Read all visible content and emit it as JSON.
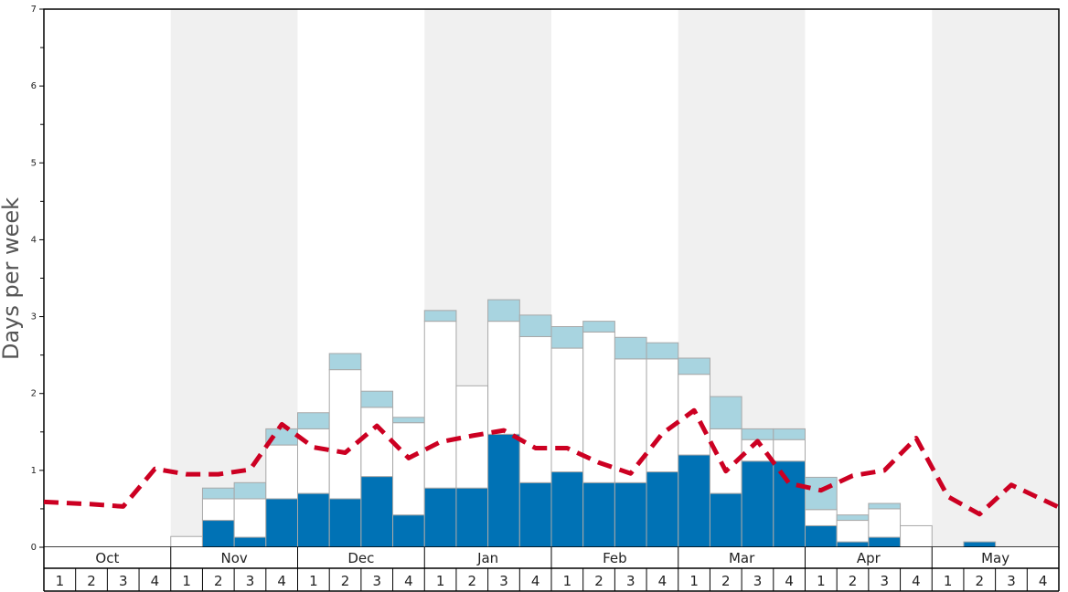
{
  "chart_data": {
    "type": "bar",
    "title": "",
    "xlabel": "",
    "ylabel": "Days per week",
    "ylim": [
      0,
      7
    ],
    "yticks": [
      "0",
      "1",
      "2",
      "3",
      "4",
      "5",
      "6",
      "7"
    ],
    "months": [
      "Oct",
      "Nov",
      "Dec",
      "Jan",
      "Feb",
      "Mar",
      "Apr",
      "May"
    ],
    "week_labels": [
      "1",
      "2",
      "3",
      "4"
    ],
    "grid": false,
    "colors": {
      "dark": "#0072b5",
      "white": "#ffffff",
      "light": "#a8d4e0",
      "line": "#cc0022",
      "band": "#f0f0f0",
      "bar_edge": "#a8a8a8"
    },
    "series": [
      {
        "values": [
          0,
          0,
          0,
          0,
          0,
          0.35,
          0.13,
          0.63,
          0.7,
          0.63,
          0.92,
          0.42,
          0.77,
          0.77,
          1.47,
          0.84,
          0.98,
          0.84,
          0.84,
          0.98,
          1.2,
          0.7,
          1.12,
          1.12,
          0.28,
          0.07,
          0.13,
          0,
          0,
          0.07,
          0,
          0
        ]
      },
      {
        "values": [
          0,
          0,
          0,
          0,
          0.14,
          0.28,
          0.5,
          0.7,
          0.84,
          1.68,
          0.9,
          1.2,
          2.17,
          1.33,
          1.47,
          1.9,
          1.61,
          1.96,
          1.61,
          1.47,
          1.05,
          0.84,
          0.28,
          0.28,
          0.21,
          0.28,
          0.37,
          0.28,
          0,
          0,
          0,
          0
        ]
      },
      {
        "values": [
          0,
          0,
          0,
          0,
          0,
          0.14,
          0.21,
          0.21,
          0.21,
          0.21,
          0.21,
          0.07,
          0.14,
          0,
          0.28,
          0.28,
          0.28,
          0.14,
          0.28,
          0.21,
          0.21,
          0.42,
          0.14,
          0.14,
          0.42,
          0.07,
          0.07,
          0,
          0,
          0,
          0,
          0
        ]
      },
      {
        "values": [
          0.59,
          0.56,
          0.53,
          1.02,
          0.95,
          0.95,
          1.01,
          1.6,
          1.3,
          1.23,
          1.58,
          1.16,
          1.37,
          1.45,
          1.52,
          1.29,
          1.29,
          1.1,
          0.96,
          1.48,
          1.78,
          0.99,
          1.38,
          0.83,
          0.74,
          0.93,
          1.0,
          1.42,
          0.66,
          0.43,
          0.81,
          0.52
        ]
      }
    ]
  }
}
